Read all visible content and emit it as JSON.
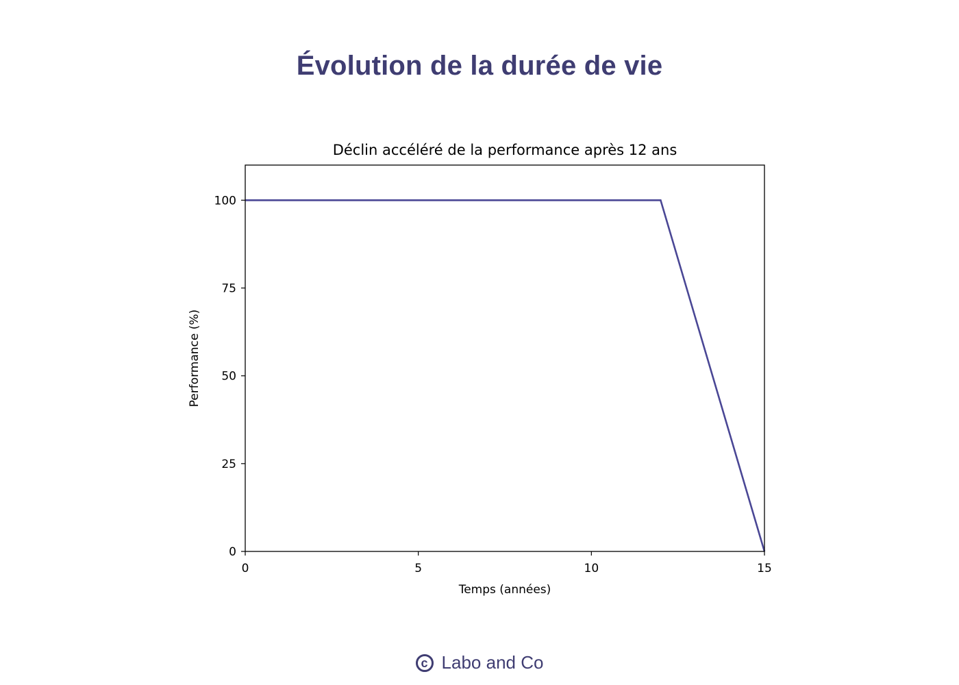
{
  "page": {
    "title": "Évolution de la durée de vie",
    "footer": {
      "icon": "copyright-icon",
      "icon_glyph": "c",
      "text": "Labo and Co"
    },
    "colors": {
      "accent": "#3f3d72",
      "line": "#4a4795",
      "axis": "#000000"
    }
  },
  "chart_data": {
    "type": "line",
    "title": "Déclin accéléré de la performance après 12 ans",
    "xlabel": "Temps (années)",
    "ylabel": "Performance (%)",
    "xlim": [
      0,
      15
    ],
    "ylim": [
      0,
      110
    ],
    "xticks": [
      0,
      5,
      10,
      15
    ],
    "yticks": [
      0,
      25,
      50,
      75,
      100
    ],
    "grid": false,
    "legend": null,
    "series": [
      {
        "name": "Performance",
        "color": "#4a4795",
        "x": [
          0,
          12,
          15
        ],
        "y": [
          100,
          100,
          0
        ]
      }
    ]
  }
}
